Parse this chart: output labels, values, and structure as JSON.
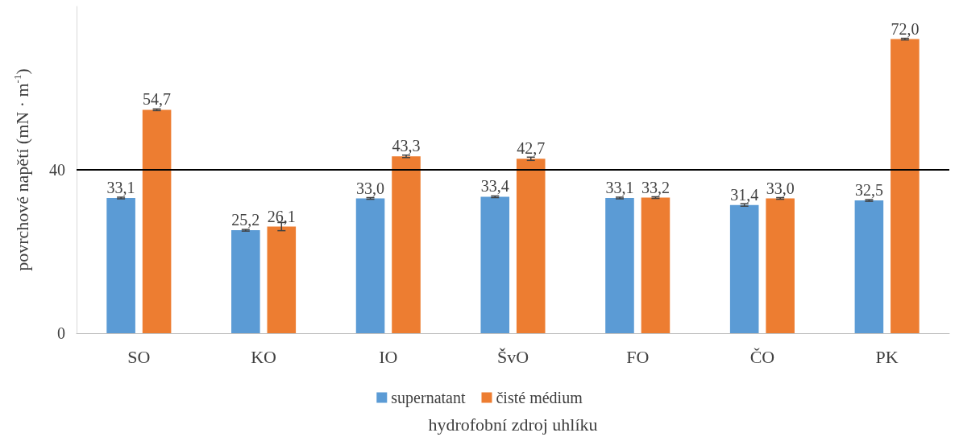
{
  "chart_data": {
    "type": "bar",
    "xlabel": "hydrofobní zdroj uhlíku",
    "ylabel": "povrchové napětí (mN · m$^{-1}$)",
    "categories": [
      "SO",
      "KO",
      "IO",
      "ŠvO",
      "FO",
      "ČO",
      "PK"
    ],
    "series": [
      {
        "name": "supernatant",
        "color": "#5b9bd5",
        "values": [
          33.1,
          25.2,
          33.0,
          33.4,
          33.1,
          31.4,
          32.5
        ],
        "errors": [
          0.2,
          0.2,
          0.2,
          0.2,
          0.2,
          0.3,
          0.2
        ],
        "value_labels": [
          "33,1",
          "25,2",
          "33,0",
          "33,4",
          "33,1",
          "31,4",
          "32,5"
        ]
      },
      {
        "name": "čisté médium",
        "color": "#ed7d31",
        "values": [
          54.7,
          26.1,
          43.3,
          42.7,
          33.2,
          33.0,
          72.0
        ],
        "errors": [
          0.2,
          1.0,
          0.3,
          0.4,
          0.2,
          0.2,
          0.2
        ],
        "value_labels": [
          "54,7",
          "26,1",
          "43,3",
          "42,7",
          "33,2",
          "33,0",
          "72,0"
        ]
      }
    ],
    "ylim": [
      0,
      80
    ],
    "yticks": [
      0,
      40
    ],
    "legend": "bottom",
    "ref_lines": [
      {
        "axis": "y",
        "value": 40,
        "color": "#000000"
      }
    ]
  }
}
